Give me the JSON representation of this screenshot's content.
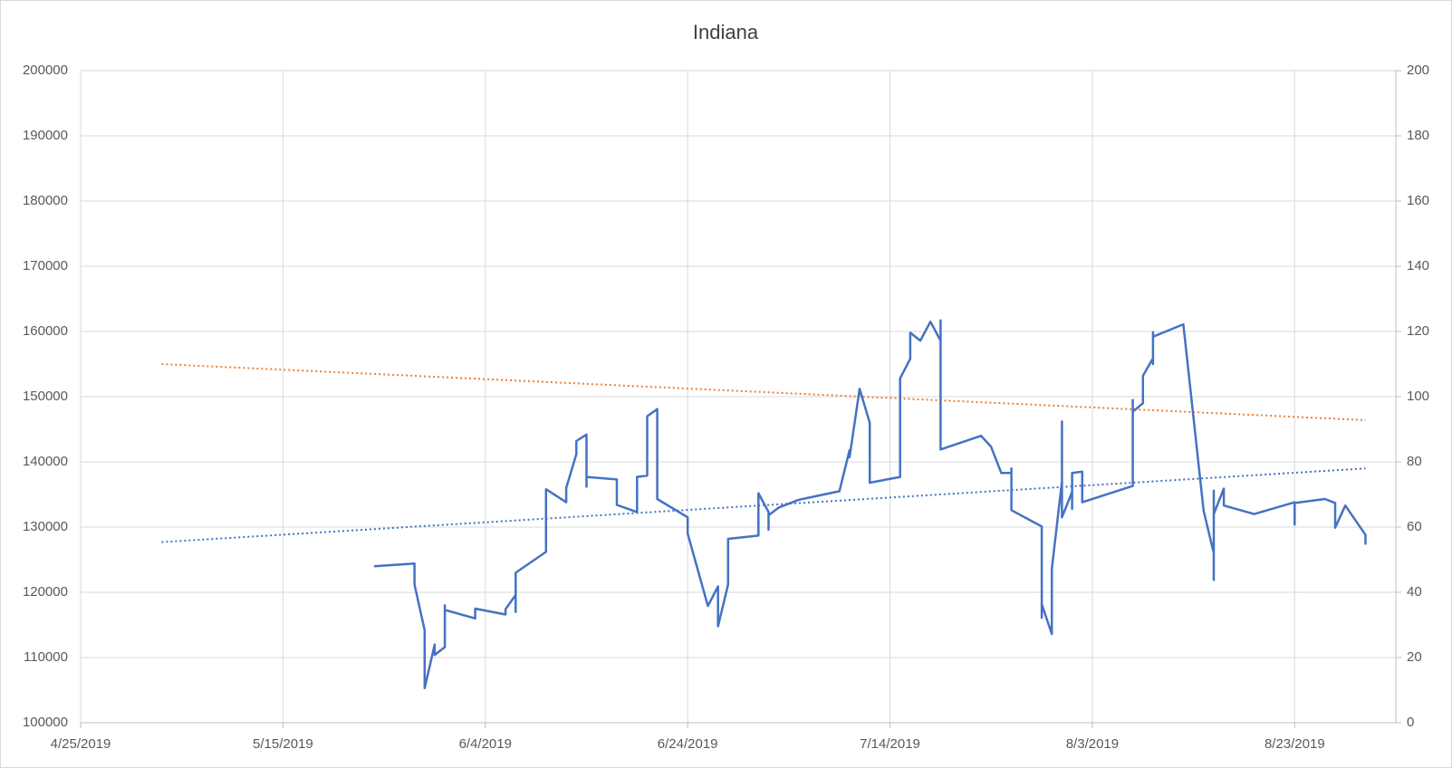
{
  "chart_data": {
    "type": "line",
    "title": "Indiana",
    "xlim": [
      "4/25/2019",
      "9/2/2019"
    ],
    "xticks": [
      "4/25/2019",
      "5/15/2019",
      "6/4/2019",
      "6/24/2019",
      "7/14/2019",
      "8/3/2019",
      "8/23/2019"
    ],
    "ylim": [
      100000,
      200000
    ],
    "yticks": [
      100000,
      110000,
      120000,
      130000,
      140000,
      150000,
      160000,
      170000,
      180000,
      190000,
      200000
    ],
    "y2lim": [
      0,
      200
    ],
    "y2ticks": [
      0,
      20,
      40,
      60,
      80,
      100,
      120,
      140,
      160,
      180,
      200
    ],
    "grid": true,
    "series": [
      {
        "color": "#4472c4",
        "x": [
          "5/24/2019",
          "5/28/2019",
          "5/28/2019",
          "5/29/2019",
          "5/29/2019",
          "5/30/2019",
          "5/30/2019",
          "5/31/2019",
          "5/31/2019",
          "5/31/2019",
          "6/3/2019",
          "6/3/2019",
          "6/6/2019",
          "6/6/2019",
          "6/7/2019",
          "6/7/2019",
          "6/7/2019",
          "6/10/2019",
          "6/10/2019",
          "6/12/2019",
          "6/12/2019",
          "6/13/2019",
          "6/13/2019",
          "6/14/2019",
          "6/14/2019",
          "6/14/2019",
          "6/17/2019",
          "6/17/2019",
          "6/19/2019",
          "6/19/2019",
          "6/20/2019",
          "6/20/2019",
          "6/21/2019",
          "6/21/2019",
          "6/24/2019",
          "6/24/2019",
          "6/26/2019",
          "6/27/2019",
          "6/27/2019",
          "6/28/2019",
          "6/28/2019",
          "7/1/2019",
          "7/1/2019",
          "7/2/2019",
          "7/2/2019",
          "7/2/2019",
          "7/3/2019",
          "7/5/2019",
          "7/9/2019",
          "7/10/2019",
          "7/10/2019",
          "7/11/2019",
          "7/12/2019",
          "7/12/2019",
          "7/15/2019",
          "7/15/2019",
          "7/16/2019",
          "7/16/2019",
          "7/17/2019",
          "7/18/2019",
          "7/19/2019",
          "7/19/2019",
          "7/19/2019",
          "7/23/2019",
          "7/24/2019",
          "7/25/2019",
          "7/26/2019",
          "7/26/2019",
          "7/26/2019",
          "7/29/2019",
          "7/29/2019",
          "7/29/2019",
          "7/30/2019",
          "7/30/2019",
          "7/31/2019",
          "7/31/2019",
          "7/31/2019",
          "8/1/2019",
          "8/1/2019",
          "8/1/2019",
          "8/2/2019",
          "8/2/2019",
          "8/7/2019",
          "8/7/2019",
          "8/7/2019",
          "8/8/2019",
          "8/8/2019",
          "8/9/2019",
          "8/9/2019",
          "8/9/2019",
          "8/9/2019",
          "8/12/2019",
          "8/14/2019",
          "8/15/2019",
          "8/15/2019",
          "8/15/2019",
          "8/15/2019",
          "8/16/2019",
          "8/16/2019",
          "8/19/2019",
          "8/23/2019",
          "8/23/2019",
          "8/23/2019",
          "8/26/2019",
          "8/27/2019",
          "8/27/2019",
          "8/28/2019",
          "8/30/2019",
          "8/30/2019"
        ],
        "values": [
          124000,
          124400,
          121200,
          114200,
          105300,
          112000,
          110400,
          111600,
          118000,
          117300,
          116000,
          117500,
          116600,
          117400,
          119600,
          117000,
          123000,
          126200,
          135800,
          133800,
          136000,
          141200,
          143200,
          144200,
          136200,
          137700,
          137300,
          133400,
          132300,
          137700,
          137900,
          147000,
          148100,
          134300,
          131500,
          129000,
          117900,
          120900,
          114800,
          121200,
          128200,
          128700,
          135200,
          132300,
          129600,
          131800,
          133000,
          134200,
          135500,
          141800,
          140700,
          151200,
          146000,
          136800,
          137700,
          152800,
          155800,
          159800,
          158600,
          161500,
          158600,
          161700,
          141900,
          144000,
          142300,
          138300,
          138300,
          139000,
          132600,
          130100,
          116100,
          118200,
          113600,
          123600,
          137000,
          146200,
          131500,
          135400,
          132800,
          138300,
          138500,
          133800,
          136300,
          149500,
          147700,
          149000,
          153200,
          155900,
          155000,
          159900,
          159200,
          161100,
          132500,
          126000,
          121900,
          135600,
          132000,
          135900,
          133300,
          132000,
          133800,
          130400,
          133700,
          134300,
          133700,
          129900,
          133300,
          128800,
          127300
        ]
      }
    ],
    "trendlines": [
      {
        "color": "#ed7d31",
        "x": [
          "5/3/2019",
          "8/30/2019"
        ],
        "values": [
          155000,
          146400
        ]
      },
      {
        "color": "#4472c4",
        "x": [
          "5/3/2019",
          "8/30/2019"
        ],
        "values": [
          127700,
          139000
        ]
      }
    ]
  }
}
